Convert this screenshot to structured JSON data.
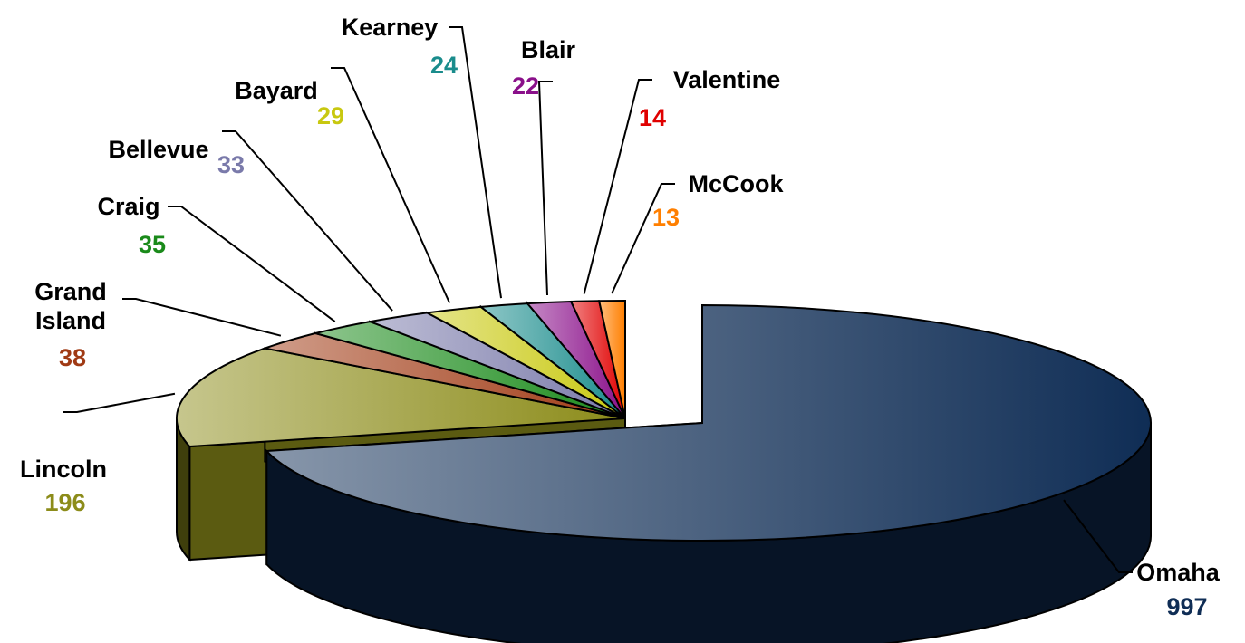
{
  "chart_data": {
    "type": "pie3d",
    "categories": [
      "Omaha",
      "Lincoln",
      "Grand Island",
      "Craig",
      "Bellevue",
      "Bayard",
      "Kearney",
      "Blair",
      "Valentine",
      "McCook"
    ],
    "values": [
      997,
      196,
      38,
      35,
      33,
      29,
      24,
      22,
      14,
      13
    ],
    "colors": [
      "#0f2d55",
      "#8c8c1a",
      "#a03a14",
      "#1a8a1a",
      "#7a7aaa",
      "#c8c810",
      "#1a8c8c",
      "#8a108a",
      "#e00000",
      "#ff7f00"
    ]
  }
}
